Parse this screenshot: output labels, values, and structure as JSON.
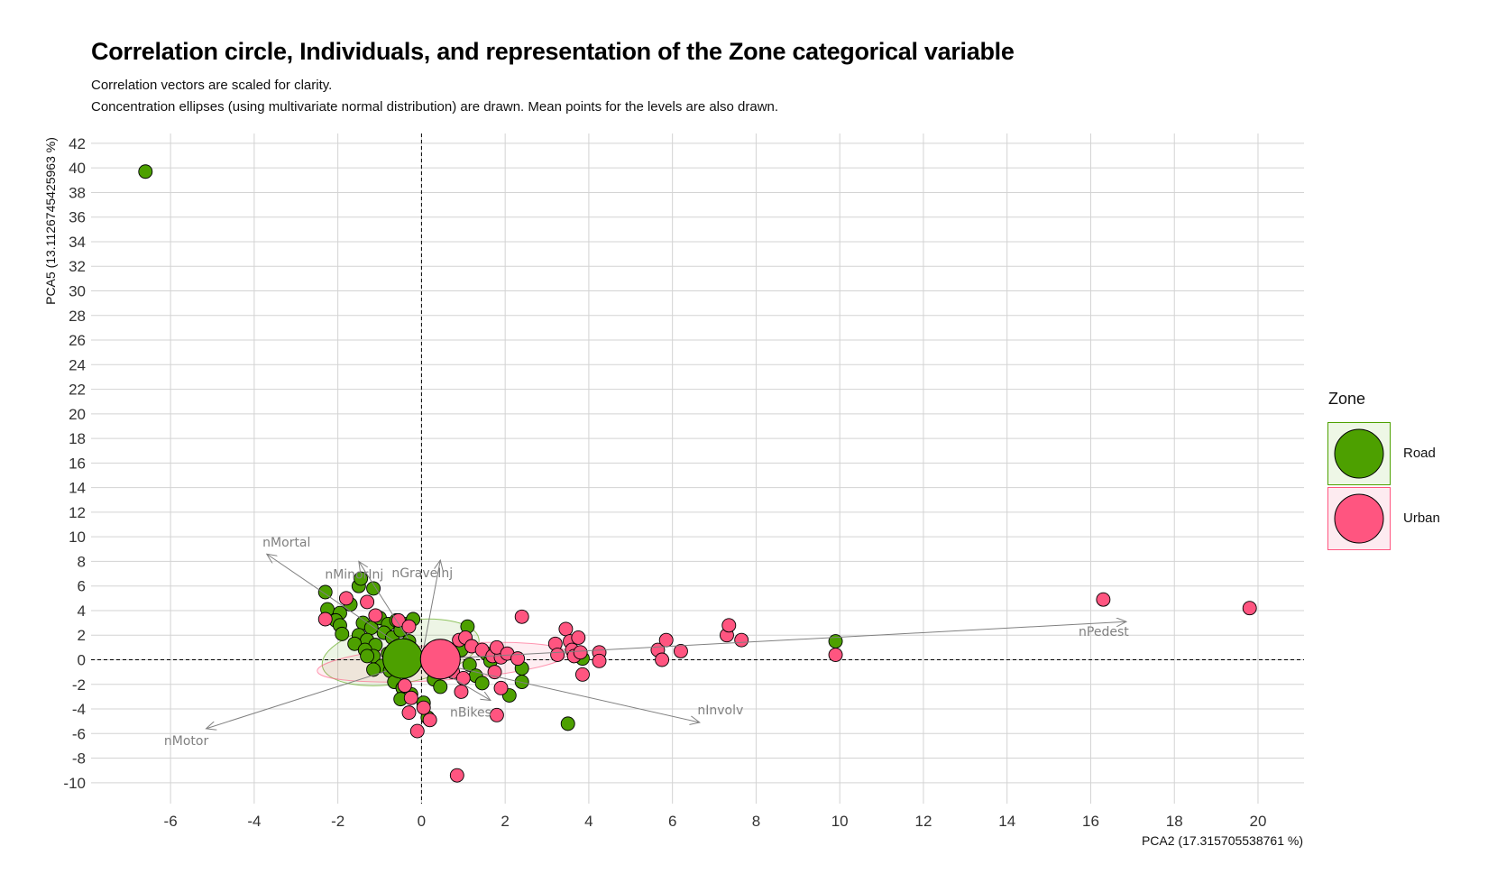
{
  "title": "Correlation circle, Individuals, and representation of the Zone categorical variable",
  "subtitle_lines": [
    "Correlation vectors are scaled for clarity.",
    "Concentration ellipses (using multivariate normal distribution) are drawn. Mean points for the levels are also drawn."
  ],
  "chart_data": {
    "type": "scatter",
    "xlabel": "PCA2 (17.315705538761 %)",
    "ylabel": "PCA5 (13.1126745425963 %)",
    "xlim": [
      -7.9,
      21.1
    ],
    "ylim": [
      -11.7,
      42.8
    ],
    "x_ticks": [
      -6,
      -4,
      -2,
      0,
      2,
      4,
      6,
      8,
      10,
      12,
      14,
      16,
      18,
      20
    ],
    "y_ticks": [
      -10,
      -8,
      -6,
      -4,
      -2,
      0,
      2,
      4,
      6,
      8,
      10,
      12,
      14,
      16,
      18,
      20,
      22,
      24,
      26,
      28,
      30,
      32,
      34,
      36,
      38,
      40,
      42
    ],
    "grid": true,
    "reference_lines": {
      "x": 0,
      "y": 0,
      "style": "dashed"
    },
    "legend": {
      "title": "Zone",
      "placement": "right"
    },
    "series": [
      {
        "name": "Road",
        "color": "#4da000",
        "ellipse": {
          "cx": -0.5,
          "cy": 0.6,
          "rx": 1.9,
          "ry": 2.5,
          "angle": -10
        },
        "mean": [
          -0.45,
          0.1
        ],
        "points": [
          [
            -6.6,
            39.7
          ],
          [
            -2.3,
            5.5
          ],
          [
            -1.5,
            6.0
          ],
          [
            -1.45,
            6.6
          ],
          [
            -1.15,
            5.8
          ],
          [
            -2.25,
            4.1
          ],
          [
            -1.95,
            3.8
          ],
          [
            -1.7,
            4.5
          ],
          [
            -2.05,
            3.2
          ],
          [
            -1.95,
            2.8
          ],
          [
            -1.9,
            2.1
          ],
          [
            -1.4,
            3.0
          ],
          [
            -1.2,
            2.6
          ],
          [
            -1.0,
            3.4
          ],
          [
            -0.8,
            2.9
          ],
          [
            -0.6,
            3.2
          ],
          [
            -0.35,
            2.9
          ],
          [
            -0.2,
            3.3
          ],
          [
            -1.5,
            2.0
          ],
          [
            -1.3,
            1.6
          ],
          [
            -1.1,
            1.2
          ],
          [
            -0.9,
            2.2
          ],
          [
            -0.7,
            1.8
          ],
          [
            -0.5,
            2.4
          ],
          [
            -0.3,
            1.5
          ],
          [
            -1.6,
            1.3
          ],
          [
            -1.35,
            0.8
          ],
          [
            -1.15,
            0.3
          ],
          [
            -0.95,
            -0.5
          ],
          [
            -0.75,
            -0.9
          ],
          [
            -1.15,
            -0.8
          ],
          [
            -0.65,
            -1.8
          ],
          [
            -0.45,
            -2.3
          ],
          [
            -0.25,
            -2.8
          ],
          [
            -0.5,
            -3.2
          ],
          [
            0.05,
            -3.5
          ],
          [
            0.15,
            -4.7
          ],
          [
            0.3,
            -1.6
          ],
          [
            0.45,
            -2.2
          ],
          [
            1.1,
            2.7
          ],
          [
            0.95,
            0.8
          ],
          [
            1.15,
            -0.4
          ],
          [
            1.3,
            -1.3
          ],
          [
            1.45,
            -1.9
          ],
          [
            1.55,
            0.5
          ],
          [
            1.65,
            -0.1
          ],
          [
            2.1,
            -2.9
          ],
          [
            2.4,
            -1.8
          ],
          [
            2.4,
            -0.7
          ],
          [
            3.5,
            -5.2
          ],
          [
            3.85,
            0.1
          ],
          [
            9.9,
            1.5
          ],
          [
            -0.8,
            0.5
          ],
          [
            -1.3,
            0.3
          ]
        ]
      },
      {
        "name": "Urban",
        "color": "#ff5580",
        "ellipse": {
          "cx": 0.5,
          "cy": -0.2,
          "rx": 3.0,
          "ry": 1.45,
          "angle": -4
        },
        "mean": [
          0.45,
          0.05
        ],
        "points": [
          [
            -1.8,
            5.0
          ],
          [
            -1.3,
            4.7
          ],
          [
            -2.3,
            3.3
          ],
          [
            -1.1,
            3.6
          ],
          [
            -0.55,
            3.2
          ],
          [
            -0.3,
            2.7
          ],
          [
            0.9,
            1.6
          ],
          [
            1.05,
            1.8
          ],
          [
            1.2,
            1.1
          ],
          [
            1.45,
            0.8
          ],
          [
            1.7,
            0.3
          ],
          [
            1.9,
            0.2
          ],
          [
            1.8,
            1.0
          ],
          [
            2.05,
            0.5
          ],
          [
            2.3,
            0.1
          ],
          [
            0.75,
            -1.0
          ],
          [
            1.0,
            -1.5
          ],
          [
            0.95,
            -2.6
          ],
          [
            1.75,
            -1.0
          ],
          [
            1.9,
            -2.3
          ],
          [
            -0.4,
            -2.1
          ],
          [
            -0.25,
            -3.1
          ],
          [
            0.05,
            -3.9
          ],
          [
            -0.3,
            -4.3
          ],
          [
            0.2,
            -4.9
          ],
          [
            -0.1,
            -5.8
          ],
          [
            1.8,
            -4.5
          ],
          [
            0.85,
            -9.4
          ],
          [
            2.4,
            3.5
          ],
          [
            3.2,
            1.3
          ],
          [
            3.25,
            0.4
          ],
          [
            3.45,
            2.5
          ],
          [
            3.55,
            1.5
          ],
          [
            3.6,
            0.8
          ],
          [
            3.65,
            0.3
          ],
          [
            3.75,
            1.8
          ],
          [
            3.8,
            0.6
          ],
          [
            3.85,
            -1.2
          ],
          [
            4.25,
            0.6
          ],
          [
            4.25,
            -0.1
          ],
          [
            5.65,
            0.8
          ],
          [
            5.75,
            0.0
          ],
          [
            5.85,
            1.6
          ],
          [
            6.2,
            0.7
          ],
          [
            7.3,
            2.0
          ],
          [
            7.35,
            2.8
          ],
          [
            7.65,
            1.6
          ],
          [
            9.9,
            0.4
          ],
          [
            16.3,
            4.9
          ],
          [
            19.8,
            4.2
          ]
        ]
      }
    ],
    "variables": [
      {
        "name": "nMortal",
        "x": -3.7,
        "y": 8.6
      },
      {
        "name": "nMinorInj",
        "x": -1.5,
        "y": 8.0
      },
      {
        "name": "nGraveInj",
        "x": 0.45,
        "y": 8.1
      },
      {
        "name": "nPedest",
        "x": 16.85,
        "y": 3.1
      },
      {
        "name": "nInvolv",
        "x": 6.65,
        "y": -5.1
      },
      {
        "name": "nBikes",
        "x": 1.65,
        "y": -3.3
      },
      {
        "name": "nMotor",
        "x": -5.15,
        "y": -5.6
      }
    ]
  }
}
